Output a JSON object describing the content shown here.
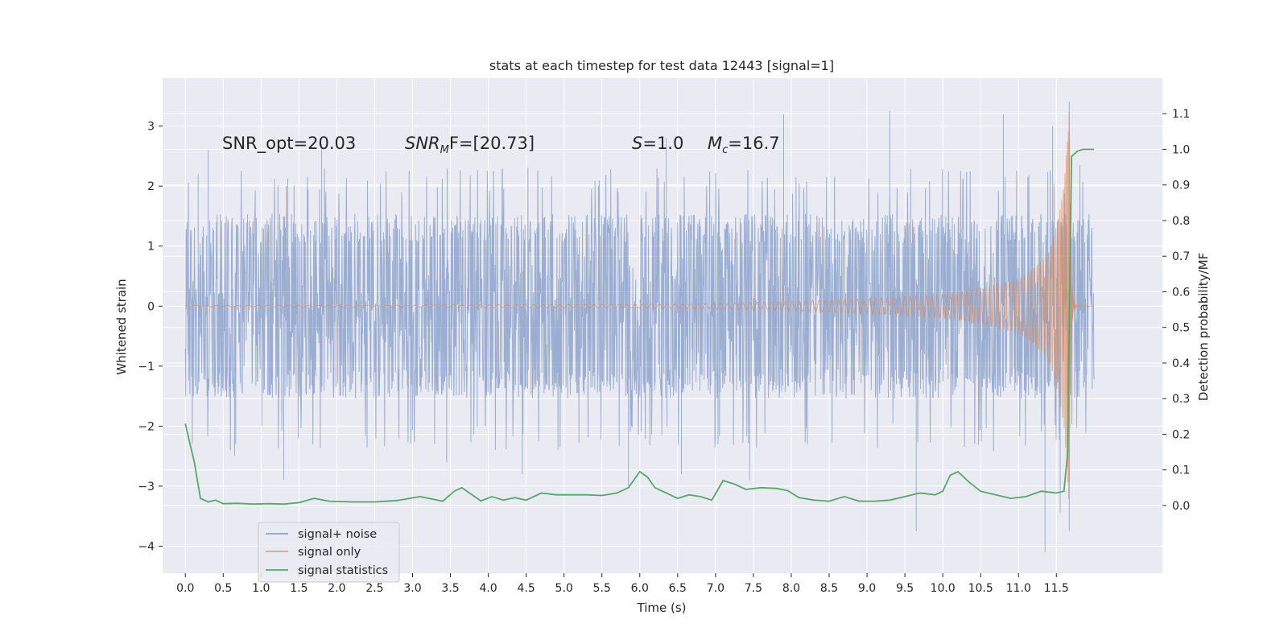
{
  "chart_data": {
    "type": "line",
    "title": "stats at each timestep for test data 12443 [signal=1]",
    "xlabel": "Time (s)",
    "ylabel": "Whitened strain",
    "y2label": "Detection probability/MF",
    "xlim": [
      -0.3,
      12.9
    ],
    "ylim": [
      -4.45,
      3.8
    ],
    "y2lim": [
      -0.19,
      1.2
    ],
    "x_ticks": [
      0.0,
      0.5,
      1.0,
      1.5,
      2.0,
      2.5,
      3.0,
      3.5,
      4.0,
      4.5,
      5.0,
      5.5,
      6.0,
      6.5,
      7.0,
      7.5,
      8.0,
      8.5,
      9.0,
      9.5,
      10.0,
      10.5,
      11.0,
      11.5
    ],
    "x_tick_labels": [
      "0.0",
      "0.5",
      "1.0",
      "1.5",
      "2.0",
      "2.5",
      "3.0",
      "3.5",
      "4.0",
      "4.5",
      "5.0",
      "5.5",
      "6.0",
      "6.5",
      "7.0",
      "7.5",
      "8.0",
      "8.5",
      "9.0",
      "9.5",
      "10.0",
      "10.5",
      "11.0",
      "11.5"
    ],
    "y_ticks": [
      3,
      2,
      1,
      0,
      -1,
      -2,
      -3,
      -4
    ],
    "y_tick_labels": [
      "3",
      "2",
      "1",
      "0",
      "−1",
      "−2",
      "−3",
      "−4"
    ],
    "y2_ticks": [
      1.1,
      1.0,
      0.9,
      0.8,
      0.7,
      0.6,
      0.5,
      0.4,
      0.3,
      0.2,
      0.1,
      0.0
    ],
    "y2_tick_labels": [
      "1.1",
      "1.0",
      "0.9",
      "0.8",
      "0.7",
      "0.6",
      "0.5",
      "0.4",
      "0.3",
      "0.2",
      "0.1",
      "0.0"
    ],
    "grid": true,
    "legend_position": "lower-left",
    "annotations": {
      "snr_opt": "SNR_opt=20.03",
      "snr_mf_symbol": "SNR",
      "snr_mf_sub": "M",
      "snr_mf_rest": "F=[20.73]",
      "s_symbol": "S",
      "s_rest": "=1.0",
      "mc_symbol": "M",
      "mc_sub": "c",
      "mc_rest": "=16.7"
    },
    "series": [
      {
        "name": "signal+ noise",
        "color": "#4c72b0",
        "axis": "left",
        "t_start": 0.0,
        "t_end": 12.0,
        "typical_envelope": [
          -1.4,
          1.4
        ],
        "peak_envelope": [
          -2.3,
          2.2
        ],
        "extreme_points": [
          {
            "x": 0.17,
            "y": 2.2
          },
          {
            "x": 0.3,
            "y": 2.6
          },
          {
            "x": 0.65,
            "y": -2.5
          },
          {
            "x": 1.3,
            "y": -2.9
          },
          {
            "x": 1.8,
            "y": 2.7
          },
          {
            "x": 3.45,
            "y": -2.6
          },
          {
            "x": 4.45,
            "y": -2.8
          },
          {
            "x": 5.85,
            "y": -3.0
          },
          {
            "x": 6.35,
            "y": 2.8
          },
          {
            "x": 6.55,
            "y": -2.8
          },
          {
            "x": 7.45,
            "y": -2.9
          },
          {
            "x": 7.9,
            "y": 3.2
          },
          {
            "x": 9.3,
            "y": 3.25
          },
          {
            "x": 9.65,
            "y": -3.75
          },
          {
            "x": 10.8,
            "y": 3.2
          },
          {
            "x": 11.35,
            "y": -4.1
          },
          {
            "x": 11.45,
            "y": 3.0
          },
          {
            "x": 11.55,
            "y": -3.45
          },
          {
            "x": 11.67,
            "y": -3.75
          },
          {
            "x": 11.67,
            "y": 3.4
          }
        ]
      },
      {
        "name": "signal only",
        "color": "#dd8452",
        "axis": "left",
        "t_start": 0.0,
        "t_merger": 11.67,
        "t_end": 12.0,
        "peak_amplitude": 3.4,
        "amplitude_at_t": [
          {
            "x": 0.0,
            "y": 0.01
          },
          {
            "x": 6.0,
            "y": 0.03
          },
          {
            "x": 8.0,
            "y": 0.08
          },
          {
            "x": 10.0,
            "y": 0.2
          },
          {
            "x": 11.0,
            "y": 0.45
          },
          {
            "x": 11.4,
            "y": 0.9
          },
          {
            "x": 11.6,
            "y": 2.0
          },
          {
            "x": 11.67,
            "y": 3.4
          }
        ]
      },
      {
        "name": "signal statistics",
        "color": "#55a868",
        "axis": "right",
        "x": [
          0.0,
          0.12,
          0.2,
          0.3,
          0.4,
          0.5,
          0.7,
          0.9,
          1.1,
          1.3,
          1.5,
          1.7,
          1.9,
          2.2,
          2.5,
          2.8,
          3.1,
          3.4,
          3.55,
          3.65,
          3.75,
          3.9,
          4.05,
          4.2,
          4.35,
          4.5,
          4.7,
          4.9,
          5.1,
          5.3,
          5.5,
          5.7,
          5.85,
          6.0,
          6.1,
          6.2,
          6.35,
          6.5,
          6.65,
          6.8,
          6.95,
          7.1,
          7.25,
          7.4,
          7.6,
          7.8,
          7.95,
          8.1,
          8.3,
          8.5,
          8.7,
          8.9,
          9.1,
          9.3,
          9.5,
          9.7,
          9.9,
          10.0,
          10.1,
          10.2,
          10.35,
          10.5,
          10.7,
          10.9,
          11.1,
          11.3,
          11.5,
          11.6,
          11.65,
          11.67,
          11.7,
          11.78,
          11.85,
          12.0
        ],
        "y": [
          0.23,
          0.12,
          0.02,
          0.01,
          0.015,
          0.005,
          0.006,
          0.004,
          0.005,
          0.004,
          0.008,
          0.02,
          0.012,
          0.01,
          0.01,
          0.014,
          0.025,
          0.012,
          0.04,
          0.05,
          0.035,
          0.013,
          0.025,
          0.015,
          0.022,
          0.015,
          0.035,
          0.03,
          0.03,
          0.03,
          0.028,
          0.035,
          0.05,
          0.095,
          0.08,
          0.05,
          0.035,
          0.02,
          0.03,
          0.025,
          0.015,
          0.07,
          0.06,
          0.045,
          0.05,
          0.048,
          0.042,
          0.022,
          0.015,
          0.012,
          0.025,
          0.012,
          0.012,
          0.015,
          0.025,
          0.035,
          0.03,
          0.04,
          0.085,
          0.095,
          0.065,
          0.04,
          0.03,
          0.02,
          0.025,
          0.04,
          0.035,
          0.04,
          0.15,
          0.5,
          0.98,
          0.995,
          1.0,
          1.0
        ]
      }
    ]
  }
}
